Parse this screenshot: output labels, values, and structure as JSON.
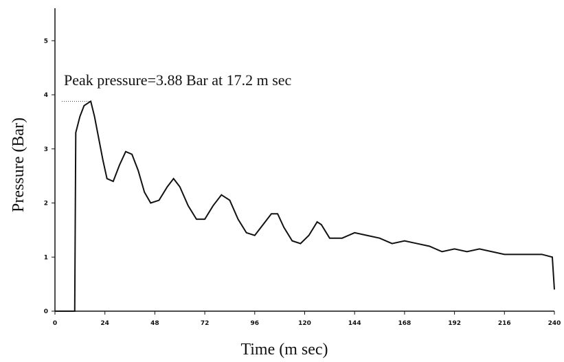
{
  "chart_data": {
    "type": "line",
    "xlabel": "Time (m sec)",
    "ylabel": "Pressure (Bar)",
    "annotation": "Peak pressure=3.88 Bar at 17.2 m sec",
    "x": [
      0,
      9.5,
      10,
      12,
      14,
      16,
      17.2,
      19,
      21,
      23,
      25,
      28,
      31,
      34,
      37,
      40,
      43,
      46,
      50,
      54,
      57,
      60,
      64,
      68,
      72,
      76,
      80,
      84,
      88,
      92,
      96,
      100,
      104,
      107,
      110,
      114,
      118,
      122,
      126,
      128,
      132,
      138,
      144,
      150,
      156,
      162,
      168,
      174,
      180,
      186,
      192,
      198,
      204,
      210,
      216,
      222,
      228,
      234,
      239,
      240
    ],
    "series": [
      {
        "color": "#111111",
        "values": [
          0,
          0,
          3.3,
          3.6,
          3.8,
          3.85,
          3.88,
          3.6,
          3.2,
          2.8,
          2.45,
          2.4,
          2.7,
          2.95,
          2.9,
          2.6,
          2.2,
          2.0,
          2.05,
          2.3,
          2.45,
          2.3,
          1.95,
          1.7,
          1.7,
          1.95,
          2.15,
          2.05,
          1.7,
          1.45,
          1.4,
          1.6,
          1.8,
          1.8,
          1.55,
          1.3,
          1.25,
          1.4,
          1.65,
          1.6,
          1.35,
          1.35,
          1.45,
          1.4,
          1.35,
          1.25,
          1.3,
          1.25,
          1.2,
          1.1,
          1.15,
          1.1,
          1.15,
          1.1,
          1.05,
          1.05,
          1.05,
          1.05,
          1.0,
          0.4
        ]
      }
    ],
    "xlim": [
      0,
      240
    ],
    "xticks": [
      0,
      24,
      48,
      72,
      96,
      120,
      144,
      168,
      192,
      216,
      240
    ],
    "ylim": [
      0,
      5.6
    ],
    "yticks": [
      0,
      1,
      2,
      3,
      4,
      5
    ]
  }
}
